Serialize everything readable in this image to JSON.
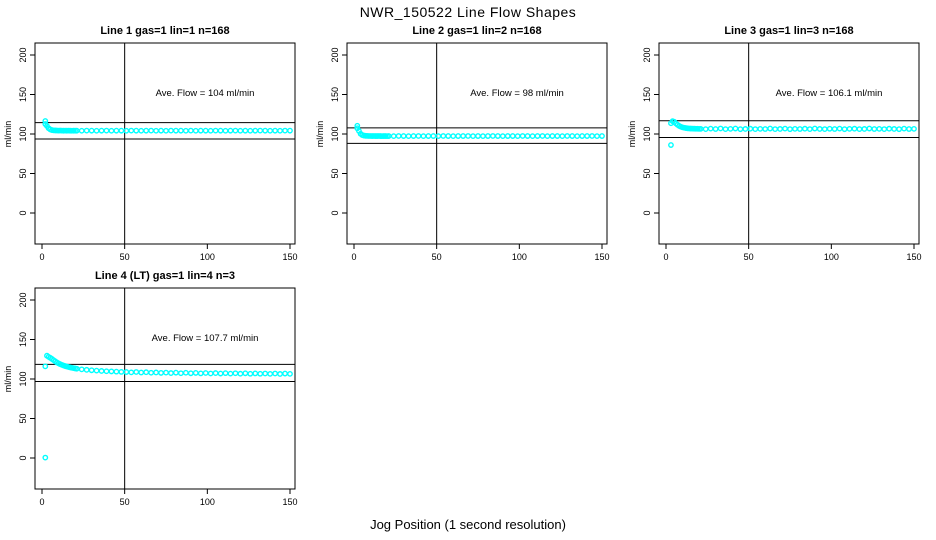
{
  "figure": {
    "title": "NWR_150522  Line Flow Shapes",
    "xlabel": "Jog Position (1 second resolution)",
    "point_color": "#00FFFF",
    "axis_color": "#000000",
    "background": "#ffffff"
  },
  "chart_data": [
    {
      "type": "scatter",
      "title": "Line 1 gas=1 lin=1 n=168",
      "annotation": "Ave. Flow =  104  ml/min",
      "ave_flow": 104,
      "ylabel": "ml/min",
      "xlim": [
        0,
        150
      ],
      "ylim": [
        0,
        200
      ],
      "x_ticks": [
        0,
        50,
        100,
        150
      ],
      "y_ticks": [
        0,
        50,
        100,
        150,
        200
      ],
      "vline_x": 50,
      "hlines": [
        114.4,
        93.6
      ],
      "points": [
        [
          2,
          116.4
        ],
        [
          2,
          112.6
        ],
        [
          3,
          110.2
        ],
        [
          4,
          107.3
        ],
        [
          5,
          105.8
        ],
        [
          6,
          105.0
        ],
        [
          7,
          104.6
        ],
        [
          8,
          104.5
        ],
        [
          9,
          104.4
        ],
        [
          10,
          104.3
        ],
        [
          11,
          104.4
        ],
        [
          12,
          104.3
        ],
        [
          13,
          104.2
        ],
        [
          14,
          104.3
        ],
        [
          15,
          104.2
        ],
        [
          16,
          104.3
        ],
        [
          17,
          104.2
        ],
        [
          18,
          104.1
        ],
        [
          19,
          104.2
        ],
        [
          20,
          104.2
        ],
        [
          21,
          104.2
        ],
        [
          24,
          104.1
        ],
        [
          27,
          104.3
        ],
        [
          30,
          104.2
        ],
        [
          33,
          104.1
        ],
        [
          36,
          104.2
        ],
        [
          39,
          104.3
        ],
        [
          42,
          104.1
        ],
        [
          45,
          104.2
        ],
        [
          48,
          104.2
        ],
        [
          51,
          104.1
        ],
        [
          54,
          104.3
        ],
        [
          57,
          104.2
        ],
        [
          60,
          104.1
        ],
        [
          63,
          104.2
        ],
        [
          66,
          104.3
        ],
        [
          69,
          104.1
        ],
        [
          72,
          104.2
        ],
        [
          75,
          104.1
        ],
        [
          78,
          104.3
        ],
        [
          81,
          104.2
        ],
        [
          84,
          104.2
        ],
        [
          87,
          104.1
        ],
        [
          90,
          104.3
        ],
        [
          93,
          104.1
        ],
        [
          96,
          104.2
        ],
        [
          99,
          104.2
        ],
        [
          102,
          104.1
        ],
        [
          105,
          104.3
        ],
        [
          108,
          104.2
        ],
        [
          111,
          104.1
        ],
        [
          114,
          104.2
        ],
        [
          117,
          104.3
        ],
        [
          120,
          104.1
        ],
        [
          123,
          104.2
        ],
        [
          126,
          104.1
        ],
        [
          129,
          104.2
        ],
        [
          132,
          104.3
        ],
        [
          135,
          104.2
        ],
        [
          138,
          104.1
        ],
        [
          141,
          104.2
        ],
        [
          144,
          104.1
        ],
        [
          147,
          104.3
        ],
        [
          150,
          104.2
        ]
      ]
    },
    {
      "type": "scatter",
      "title": "Line 2 gas=1 lin=2 n=168",
      "annotation": "Ave. Flow =  98  ml/min",
      "ave_flow": 98,
      "ylabel": "ml/min",
      "xlim": [
        0,
        150
      ],
      "ylim": [
        0,
        200
      ],
      "x_ticks": [
        0,
        50,
        100,
        150
      ],
      "y_ticks": [
        0,
        50,
        100,
        150,
        200
      ],
      "vline_x": 50,
      "hlines": [
        107.8,
        88.2
      ],
      "points": [
        [
          2,
          110.4
        ],
        [
          2,
          107.2
        ],
        [
          3,
          103.8
        ],
        [
          4,
          100.3
        ],
        [
          5,
          98.7
        ],
        [
          6,
          98.0
        ],
        [
          7,
          97.7
        ],
        [
          8,
          97.6
        ],
        [
          9,
          97.5
        ],
        [
          10,
          97.5
        ],
        [
          11,
          97.4
        ],
        [
          12,
          97.5
        ],
        [
          13,
          97.4
        ],
        [
          14,
          97.4
        ],
        [
          15,
          97.5
        ],
        [
          16,
          97.4
        ],
        [
          17,
          97.3
        ],
        [
          18,
          97.4
        ],
        [
          19,
          97.4
        ],
        [
          20,
          97.3
        ],
        [
          21,
          97.4
        ],
        [
          24,
          97.3
        ],
        [
          27,
          97.5
        ],
        [
          30,
          97.4
        ],
        [
          33,
          97.3
        ],
        [
          36,
          97.4
        ],
        [
          39,
          97.5
        ],
        [
          42,
          97.3
        ],
        [
          45,
          97.4
        ],
        [
          48,
          97.4
        ],
        [
          51,
          97.3
        ],
        [
          54,
          97.5
        ],
        [
          57,
          97.4
        ],
        [
          60,
          97.3
        ],
        [
          63,
          97.4
        ],
        [
          66,
          97.4
        ],
        [
          69,
          97.5
        ],
        [
          72,
          97.3
        ],
        [
          75,
          97.4
        ],
        [
          78,
          97.3
        ],
        [
          81,
          97.4
        ],
        [
          84,
          97.5
        ],
        [
          87,
          97.4
        ],
        [
          90,
          97.3
        ],
        [
          93,
          97.4
        ],
        [
          96,
          97.4
        ],
        [
          99,
          97.3
        ],
        [
          102,
          97.5
        ],
        [
          105,
          97.4
        ],
        [
          108,
          97.3
        ],
        [
          111,
          97.4
        ],
        [
          114,
          97.5
        ],
        [
          117,
          97.3
        ],
        [
          120,
          97.4
        ],
        [
          123,
          97.4
        ],
        [
          126,
          97.3
        ],
        [
          129,
          97.5
        ],
        [
          132,
          97.4
        ],
        [
          135,
          97.3
        ],
        [
          138,
          97.4
        ],
        [
          141,
          97.4
        ],
        [
          144,
          97.5
        ],
        [
          147,
          97.3
        ],
        [
          150,
          97.4
        ]
      ]
    },
    {
      "type": "scatter",
      "title": "Line 3 gas=1 lin=3 n=168",
      "annotation": "Ave. Flow =  106.1  ml/min",
      "ave_flow": 106.1,
      "ylabel": "ml/min",
      "xlim": [
        0,
        150
      ],
      "ylim": [
        0,
        200
      ],
      "x_ticks": [
        0,
        50,
        100,
        150
      ],
      "y_ticks": [
        0,
        50,
        100,
        150,
        200
      ],
      "vline_x": 50,
      "hlines": [
        116.7,
        95.5
      ],
      "points": [
        [
          3,
          86.0
        ],
        [
          3,
          113.6
        ],
        [
          4,
          116.2
        ],
        [
          5,
          115.4
        ],
        [
          6,
          113.3
        ],
        [
          7,
          111.6
        ],
        [
          8,
          110.2
        ],
        [
          9,
          109.2
        ],
        [
          10,
          108.4
        ],
        [
          11,
          107.9
        ],
        [
          12,
          107.5
        ],
        [
          13,
          107.2
        ],
        [
          14,
          107.0
        ],
        [
          15,
          106.9
        ],
        [
          16,
          106.8
        ],
        [
          17,
          106.7
        ],
        [
          18,
          106.6
        ],
        [
          19,
          106.6
        ],
        [
          20,
          106.5
        ],
        [
          21,
          106.5
        ],
        [
          24,
          106.2
        ],
        [
          27,
          106.8
        ],
        [
          30,
          106.3
        ],
        [
          33,
          107.0
        ],
        [
          36,
          106.2
        ],
        [
          39,
          106.5
        ],
        [
          42,
          106.9
        ],
        [
          45,
          106.1
        ],
        [
          48,
          106.4
        ],
        [
          51,
          106.7
        ],
        [
          54,
          106.2
        ],
        [
          57,
          106.5
        ],
        [
          60,
          106.3
        ],
        [
          63,
          106.9
        ],
        [
          66,
          106.2
        ],
        [
          69,
          106.4
        ],
        [
          72,
          106.8
        ],
        [
          75,
          106.1
        ],
        [
          78,
          106.5
        ],
        [
          81,
          106.3
        ],
        [
          84,
          106.7
        ],
        [
          87,
          106.2
        ],
        [
          90,
          106.9
        ],
        [
          93,
          106.4
        ],
        [
          96,
          106.2
        ],
        [
          99,
          106.6
        ],
        [
          102,
          106.3
        ],
        [
          105,
          106.8
        ],
        [
          108,
          106.1
        ],
        [
          111,
          106.5
        ],
        [
          114,
          106.7
        ],
        [
          117,
          106.2
        ],
        [
          120,
          106.4
        ],
        [
          123,
          106.9
        ],
        [
          126,
          106.3
        ],
        [
          129,
          106.5
        ],
        [
          132,
          106.2
        ],
        [
          135,
          106.7
        ],
        [
          138,
          106.4
        ],
        [
          141,
          106.1
        ],
        [
          144,
          106.8
        ],
        [
          147,
          106.3
        ],
        [
          150,
          106.5
        ]
      ]
    },
    {
      "type": "scatter",
      "title": "Line 4 (LT) gas=1 lin=4 n=3",
      "annotation": "Ave. Flow =  107.7  ml/min",
      "ave_flow": 107.7,
      "ylabel": "ml/min",
      "xlim": [
        0,
        150
      ],
      "ylim": [
        0,
        200
      ],
      "x_ticks": [
        0,
        50,
        100,
        150
      ],
      "y_ticks": [
        0,
        50,
        100,
        150,
        200
      ],
      "vline_x": 50,
      "hlines": [
        118.5,
        96.9
      ],
      "points": [
        [
          2,
          0.5
        ],
        [
          2,
          116.0
        ],
        [
          3,
          129.5
        ],
        [
          4,
          128.0
        ],
        [
          5,
          126.8
        ],
        [
          6,
          125.4
        ],
        [
          7,
          123.9
        ],
        [
          8,
          122.4
        ],
        [
          9,
          121.0
        ],
        [
          10,
          119.8
        ],
        [
          11,
          118.8
        ],
        [
          12,
          117.9
        ],
        [
          13,
          117.1
        ],
        [
          14,
          116.4
        ],
        [
          15,
          115.8
        ],
        [
          16,
          115.2
        ],
        [
          17,
          114.7
        ],
        [
          18,
          114.2
        ],
        [
          19,
          113.8
        ],
        [
          20,
          113.4
        ],
        [
          21,
          113.0
        ],
        [
          24,
          112.2
        ],
        [
          27,
          111.6
        ],
        [
          30,
          111.0
        ],
        [
          33,
          110.6
        ],
        [
          36,
          110.2
        ],
        [
          39,
          109.8
        ],
        [
          42,
          109.6
        ],
        [
          45,
          109.3
        ],
        [
          48,
          109.0
        ],
        [
          51,
          108.8
        ],
        [
          54,
          108.4
        ],
        [
          57,
          108.9
        ],
        [
          60,
          108.2
        ],
        [
          63,
          108.6
        ],
        [
          66,
          107.9
        ],
        [
          69,
          108.3
        ],
        [
          72,
          107.7
        ],
        [
          75,
          108.1
        ],
        [
          78,
          107.5
        ],
        [
          81,
          108.0
        ],
        [
          84,
          107.3
        ],
        [
          87,
          107.9
        ],
        [
          90,
          107.2
        ],
        [
          93,
          107.7
        ],
        [
          96,
          107.1
        ],
        [
          99,
          107.6
        ],
        [
          102,
          107.0
        ],
        [
          105,
          107.5
        ],
        [
          108,
          106.9
        ],
        [
          111,
          107.4
        ],
        [
          114,
          106.8
        ],
        [
          117,
          107.3
        ],
        [
          120,
          106.7
        ],
        [
          123,
          107.2
        ],
        [
          126,
          106.6
        ],
        [
          129,
          107.1
        ],
        [
          132,
          106.6
        ],
        [
          135,
          107.0
        ],
        [
          138,
          106.5
        ],
        [
          141,
          107.0
        ],
        [
          144,
          106.4
        ],
        [
          147,
          106.9
        ],
        [
          150,
          106.5
        ]
      ]
    }
  ]
}
